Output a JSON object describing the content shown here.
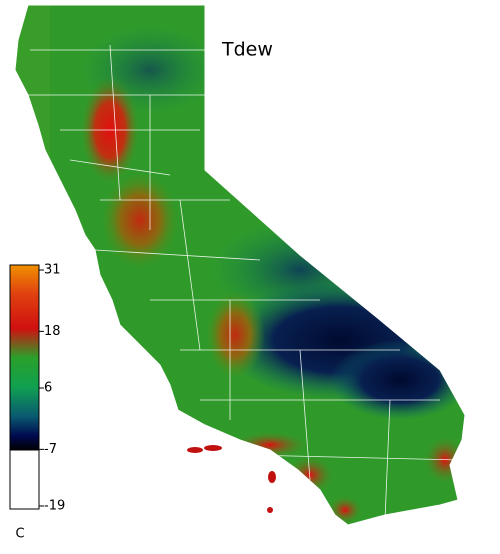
{
  "map": {
    "title": "Tdew",
    "colorbar": {
      "ticks": [
        31,
        18,
        6,
        -7,
        -19
      ],
      "lim": [
        -19,
        31
      ],
      "unit": "C"
    }
  }
}
